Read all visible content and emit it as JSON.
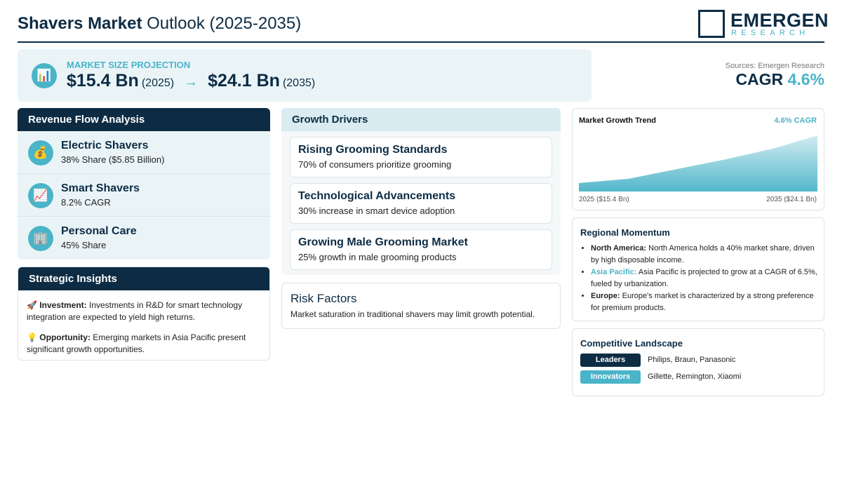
{
  "header": {
    "title_bold": "Shavers Market",
    "title_rest": "Outlook (2025-2035)",
    "logo_main": "EMERGEN",
    "logo_sub": "RESEARCH"
  },
  "projection": {
    "icon": "📊",
    "label": "MARKET SIZE PROJECTION",
    "start_value": "$15.4 Bn",
    "start_year": "(2025)",
    "arrow": "→",
    "end_value": "$24.1 Bn",
    "end_year": "(2035)"
  },
  "sources": "Sources: Emergen Research",
  "cagr": {
    "label": "CAGR",
    "value": "4.6%"
  },
  "revenue_flow": {
    "title": "Revenue Flow Analysis",
    "items": [
      {
        "icon": "💰",
        "name": "Electric Shavers",
        "detail": "38% Share ($5.85 Billion)"
      },
      {
        "icon": "📈",
        "name": "Smart Shavers",
        "detail": "8.2% CAGR"
      },
      {
        "icon": "🏢",
        "name": "Personal Care",
        "detail": "45% Share"
      }
    ]
  },
  "strategic_insights": {
    "title": "Strategic Insights",
    "items": [
      {
        "icon": "🚀",
        "label": "Investment:",
        "text": "Investments in R&D for smart technology integration are expected to yield high returns."
      },
      {
        "icon": "💡",
        "label": "Opportunity:",
        "text": "Emerging markets in Asia Pacific present significant growth opportunities."
      }
    ]
  },
  "growth_drivers": {
    "title": "Growth Drivers",
    "items": [
      {
        "name": "Rising Grooming Standards",
        "detail": "70% of consumers prioritize grooming"
      },
      {
        "name": "Technological Advancements",
        "detail": "30% increase in smart device adoption"
      },
      {
        "name": "Growing Male Grooming Market",
        "detail": "25% growth in male grooming products"
      }
    ]
  },
  "risk_factors": {
    "title": "Risk Factors",
    "text": "Market saturation in traditional shavers may limit growth potential."
  },
  "growth_trend": {
    "title": "Market Growth Trend",
    "badge": "4.6% CAGR",
    "start_label": "2025 ($15.4 Bn)",
    "end_label": "2035 ($24.1 Bn)"
  },
  "regional_momentum": {
    "title": "Regional Momentum",
    "items": [
      {
        "region": "North America:",
        "text": "North America holds a 40% market share, driven by high disposable income."
      },
      {
        "region": "Asia Pacific:",
        "text": "Asia Pacific is projected to grow at a CAGR of 6.5%, fueled by urbanization."
      },
      {
        "region": "Europe:",
        "text": "Europe's market is characterized by a strong preference for premium products."
      }
    ]
  },
  "competitive_landscape": {
    "title": "Competitive Landscape",
    "rows": [
      {
        "tag": "Leaders",
        "companies": "Philips, Braun, Panasonic"
      },
      {
        "tag": "Innovators",
        "companies": "Gillette, Remington, Xiaomi"
      }
    ]
  }
}
